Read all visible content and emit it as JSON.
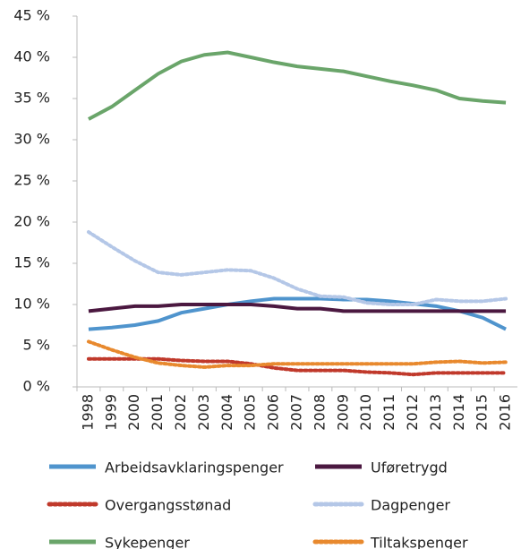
{
  "chart_data": {
    "type": "line",
    "categories": [
      "1998",
      "1999",
      "2000",
      "2001",
      "2002",
      "2003",
      "2004",
      "2005",
      "2006",
      "2007",
      "2008",
      "2009",
      "2010",
      "2011",
      "2012",
      "2013",
      "2014",
      "2015",
      "2016"
    ],
    "ylim": [
      0,
      45
    ],
    "yticks": [
      {
        "value": 0,
        "label": "0 %"
      },
      {
        "value": 5,
        "label": "5 %"
      },
      {
        "value": 10,
        "label": "10 %"
      },
      {
        "value": 15,
        "label": "15 %"
      },
      {
        "value": 20,
        "label": "20 %"
      },
      {
        "value": 25,
        "label": "25 %"
      },
      {
        "value": 30,
        "label": "30 %"
      },
      {
        "value": 35,
        "label": "35 %"
      },
      {
        "value": 40,
        "label": "40 %"
      },
      {
        "value": 45,
        "label": "45 %"
      }
    ],
    "grid": false,
    "legend": "bottom",
    "series": [
      {
        "name": "Arbeidsavklaringspenger",
        "color": "#4f94cd",
        "style": "solid",
        "values": [
          7.0,
          7.2,
          7.5,
          8.0,
          9.0,
          9.5,
          10.0,
          10.4,
          10.7,
          10.7,
          10.7,
          10.6,
          10.6,
          10.4,
          10.1,
          9.8,
          9.2,
          8.4,
          7.0
        ]
      },
      {
        "name": "Uføretrygd",
        "color": "#4b1840",
        "style": "solid",
        "values": [
          9.2,
          9.5,
          9.8,
          9.8,
          10.0,
          10.0,
          10.0,
          10.0,
          9.8,
          9.5,
          9.5,
          9.2,
          9.2,
          9.2,
          9.2,
          9.2,
          9.2,
          9.2,
          9.2
        ]
      },
      {
        "name": "Overgangsstønad",
        "color": "#c0392b",
        "style": "dotted",
        "values": [
          3.4,
          3.4,
          3.4,
          3.4,
          3.2,
          3.1,
          3.1,
          2.8,
          2.3,
          2.0,
          2.0,
          2.0,
          1.8,
          1.7,
          1.5,
          1.7,
          1.7,
          1.7,
          1.7
        ]
      },
      {
        "name": "Dagpenger",
        "color": "#b4c7e7",
        "style": "dotted",
        "values": [
          18.8,
          17.0,
          15.3,
          13.9,
          13.6,
          13.9,
          14.2,
          14.1,
          13.2,
          11.9,
          11.0,
          10.9,
          10.2,
          10.0,
          10.0,
          10.6,
          10.4,
          10.4,
          10.7
        ]
      },
      {
        "name": "Sykepenger",
        "color": "#6aa56a",
        "style": "solid",
        "values": [
          32.5,
          34.0,
          36.0,
          38.0,
          39.5,
          40.3,
          40.6,
          40.0,
          39.4,
          38.9,
          38.6,
          38.3,
          37.7,
          37.1,
          36.6,
          36.0,
          35.0,
          34.7,
          34.5
        ]
      },
      {
        "name": "Tiltakspenger",
        "color": "#e8892e",
        "style": "dotted",
        "values": [
          5.5,
          4.5,
          3.6,
          2.9,
          2.6,
          2.4,
          2.6,
          2.6,
          2.8,
          2.8,
          2.8,
          2.8,
          2.8,
          2.8,
          2.8,
          3.0,
          3.1,
          2.9,
          3.0
        ]
      }
    ]
  }
}
